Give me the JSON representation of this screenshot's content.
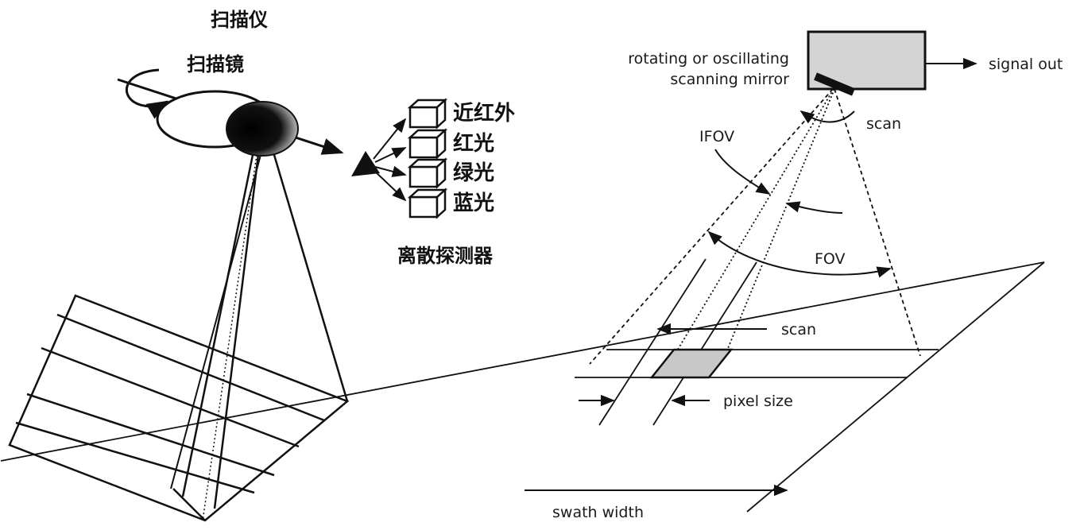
{
  "left_panel": {
    "title": "扫描仪",
    "mirror_label": "扫描镜",
    "detector_group_label": "离散探测器",
    "detectors": [
      {
        "label": "近红外"
      },
      {
        "label": "红光"
      },
      {
        "label": "绿光"
      },
      {
        "label": "蓝光"
      }
    ]
  },
  "right_panel": {
    "mirror_label_line1": "rotating or oscillating",
    "mirror_label_line2": "scanning mirror",
    "signal_label": "signal out",
    "scan_top_label": "scan",
    "ifov_label": "IFOV",
    "fov_label": "FOV",
    "scan_ground_label": "scan",
    "pixel_size_label": "pixel size",
    "swath_label": "swath width"
  },
  "colors": {
    "line": "#111111",
    "pixel_fill": "#c8c8c8",
    "box_fill": "#d4d4d4"
  }
}
